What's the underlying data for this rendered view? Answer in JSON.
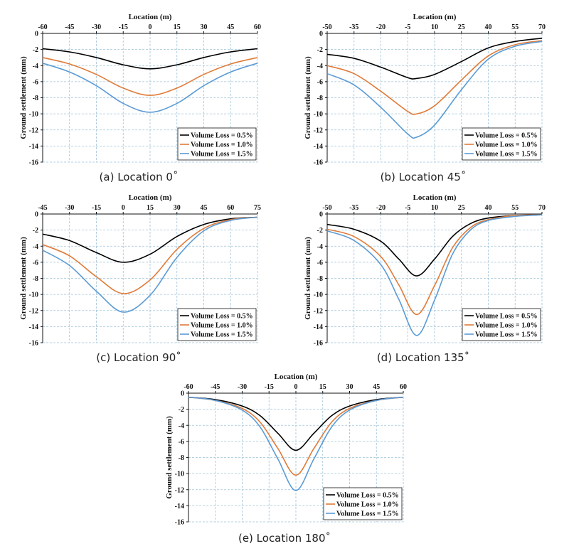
{
  "colors": {
    "vl05": "#000000",
    "vl10": "#e07b39",
    "vl15": "#5b9bd5",
    "grid": "#9fc3d9"
  },
  "chart_data": [
    {
      "type": "line",
      "caption": "(a) Location 0˚",
      "xlabel": "Location (m)",
      "ylabel": "Ground settlement (mm)",
      "xlim": [
        -60,
        60
      ],
      "ylim": [
        -16,
        0
      ],
      "xticks": [
        -60,
        -45,
        -30,
        -15,
        0,
        15,
        30,
        45,
        60
      ],
      "xtick_labels": [
        "-60",
        "-45",
        "-30",
        "-15",
        "0",
        "15",
        "30",
        "45",
        "60"
      ],
      "yticks": [
        0,
        -2,
        -4,
        -6,
        -8,
        -10,
        -12,
        -14,
        -16
      ],
      "ytick_labels": [
        "0",
        "-2",
        "-4",
        "-6",
        "-8",
        "-10",
        "-12",
        "-14",
        "-16"
      ],
      "grid": true,
      "legend_position": "bottom-right",
      "series": [
        {
          "name": "Volume Loss = 0.5%",
          "color": "#000000",
          "x": [
            -60,
            -45,
            -30,
            -15,
            0,
            15,
            30,
            45,
            60
          ],
          "y": [
            -1.9,
            -2.3,
            -3.0,
            -3.9,
            -4.4,
            -3.9,
            -3.0,
            -2.3,
            -1.9
          ]
        },
        {
          "name": "Volume Loss = 1.0%",
          "color": "#e07b39",
          "x": [
            -60,
            -45,
            -30,
            -15,
            0,
            15,
            30,
            45,
            60
          ],
          "y": [
            -3.0,
            -3.8,
            -5.1,
            -6.8,
            -7.7,
            -6.8,
            -5.1,
            -3.8,
            -3.0
          ]
        },
        {
          "name": "Volume Loss = 1.5%",
          "color": "#5b9bd5",
          "x": [
            -60,
            -45,
            -30,
            -15,
            0,
            15,
            30,
            45,
            60
          ],
          "y": [
            -3.7,
            -4.8,
            -6.5,
            -8.7,
            -9.8,
            -8.7,
            -6.5,
            -4.8,
            -3.7
          ]
        }
      ]
    },
    {
      "type": "line",
      "caption": "(b) Location 45˚",
      "xlabel": "Location (m)",
      "ylabel": "Ground settlement (mm)",
      "xlim": [
        -50,
        70
      ],
      "ylim": [
        -16,
        0
      ],
      "xticks": [
        -50,
        -35,
        -20,
        -5,
        10,
        25,
        40,
        55,
        70
      ],
      "xtick_labels": [
        "-50",
        "-35",
        "-20",
        "-5",
        "10",
        "25",
        "40",
        "55",
        "70"
      ],
      "yticks": [
        0,
        -2,
        -4,
        -6,
        -8,
        -10,
        -12,
        -14,
        -16
      ],
      "ytick_labels": [
        "0",
        "-2",
        "-4",
        "-6",
        "-8",
        "-10",
        "-12",
        "-14",
        "-16"
      ],
      "grid": true,
      "legend_position": "bottom-right",
      "series": [
        {
          "name": "Volume Loss = 0.5%",
          "color": "#000000",
          "x": [
            -50,
            -35,
            -20,
            -5,
            0,
            10,
            25,
            40,
            55,
            70
          ],
          "y": [
            -2.6,
            -3.1,
            -4.2,
            -5.5,
            -5.6,
            -5.1,
            -3.5,
            -1.8,
            -1.0,
            -0.6
          ]
        },
        {
          "name": "Volume Loss = 1.0%",
          "color": "#e07b39",
          "x": [
            -50,
            -35,
            -20,
            -5,
            0,
            10,
            25,
            40,
            55,
            70
          ],
          "y": [
            -4.0,
            -5.0,
            -7.2,
            -9.7,
            -10.0,
            -9.0,
            -5.8,
            -2.8,
            -1.4,
            -0.9
          ]
        },
        {
          "name": "Volume Loss = 1.5%",
          "color": "#5b9bd5",
          "x": [
            -50,
            -35,
            -20,
            -5,
            0,
            10,
            25,
            40,
            55,
            70
          ],
          "y": [
            -5.0,
            -6.4,
            -9.2,
            -12.5,
            -12.9,
            -11.4,
            -7.0,
            -3.2,
            -1.6,
            -1.0
          ]
        }
      ]
    },
    {
      "type": "line",
      "caption": "(c) Location 90˚",
      "xlabel": "Location (m)",
      "ylabel": "Ground settlement (mm)",
      "xlim": [
        -45,
        75
      ],
      "ylim": [
        -16,
        0
      ],
      "xticks": [
        -45,
        -30,
        -15,
        0,
        15,
        30,
        45,
        60,
        75
      ],
      "xtick_labels": [
        "-45",
        "-30",
        "-15",
        "0",
        "15",
        "30",
        "45",
        "60",
        "75"
      ],
      "yticks": [
        0,
        -2,
        -4,
        -6,
        -8,
        -10,
        -12,
        -14,
        -16
      ],
      "ytick_labels": [
        "0",
        "-2",
        "-4",
        "-6",
        "-8",
        "-10",
        "-12",
        "-14",
        "-16"
      ],
      "grid": true,
      "legend_position": "bottom-right",
      "series": [
        {
          "name": "Volume Loss = 0.5%",
          "color": "#000000",
          "x": [
            -45,
            -30,
            -15,
            0,
            15,
            30,
            45,
            60,
            75
          ],
          "y": [
            -2.5,
            -3.3,
            -4.8,
            -6.0,
            -5.0,
            -2.8,
            -1.3,
            -0.6,
            -0.4
          ]
        },
        {
          "name": "Volume Loss = 1.0%",
          "color": "#e07b39",
          "x": [
            -45,
            -30,
            -15,
            0,
            15,
            30,
            45,
            60,
            75
          ],
          "y": [
            -3.8,
            -5.2,
            -7.8,
            -9.9,
            -8.2,
            -4.4,
            -1.8,
            -0.7,
            -0.4
          ]
        },
        {
          "name": "Volume Loss = 1.5%",
          "color": "#5b9bd5",
          "x": [
            -45,
            -30,
            -15,
            0,
            15,
            30,
            45,
            60,
            75
          ],
          "y": [
            -4.5,
            -6.4,
            -9.6,
            -12.2,
            -10.1,
            -5.4,
            -2.1,
            -0.8,
            -0.4
          ]
        }
      ]
    },
    {
      "type": "line",
      "caption": "(d) Location 135˚",
      "xlabel": "Location (m)",
      "ylabel": "Ground settlement (mm)",
      "xlim": [
        -50,
        70
      ],
      "ylim": [
        -16,
        0
      ],
      "xticks": [
        -50,
        -35,
        -20,
        -5,
        10,
        25,
        40,
        55,
        70
      ],
      "xtick_labels": [
        "-50",
        "-35",
        "-20",
        "-5",
        "10",
        "25",
        "40",
        "55",
        "70"
      ],
      "yticks": [
        0,
        -2,
        -4,
        -6,
        -8,
        -10,
        -12,
        -14,
        -16
      ],
      "ytick_labels": [
        "0",
        "-2",
        "-4",
        "-6",
        "-8",
        "-10",
        "-12",
        "-14",
        "-16"
      ],
      "grid": true,
      "legend_position": "bottom-right",
      "series": [
        {
          "name": "Volume Loss = 0.5%",
          "color": "#000000",
          "x": [
            -50,
            -35,
            -20,
            -10,
            0,
            10,
            20,
            30,
            40,
            55,
            70
          ],
          "y": [
            -1.3,
            -1.9,
            -3.4,
            -5.6,
            -7.7,
            -5.6,
            -2.8,
            -1.2,
            -0.5,
            -0.2,
            -0.1
          ]
        },
        {
          "name": "Volume Loss = 1.0%",
          "color": "#e07b39",
          "x": [
            -50,
            -35,
            -20,
            -10,
            0,
            10,
            20,
            30,
            40,
            55,
            70
          ],
          "y": [
            -1.9,
            -2.8,
            -5.3,
            -8.8,
            -12.5,
            -8.9,
            -4.2,
            -1.7,
            -0.7,
            -0.2,
            -0.1
          ]
        },
        {
          "name": "Volume Loss = 1.5%",
          "color": "#5b9bd5",
          "x": [
            -50,
            -35,
            -20,
            -10,
            0,
            10,
            20,
            30,
            40,
            55,
            70
          ],
          "y": [
            -2.1,
            -3.3,
            -6.3,
            -10.6,
            -15.1,
            -10.7,
            -5.0,
            -2.0,
            -0.8,
            -0.3,
            -0.1
          ]
        }
      ]
    },
    {
      "type": "line",
      "caption": "(e) Location 180˚",
      "xlabel": "Location (m)",
      "ylabel": "Ground settlement (mm)",
      "xlim": [
        -60,
        60
      ],
      "ylim": [
        -16,
        0
      ],
      "xticks": [
        -60,
        -45,
        -30,
        -15,
        0,
        15,
        30,
        45,
        60
      ],
      "xtick_labels": [
        "-60",
        "-45",
        "-30",
        "-15",
        "0",
        "15",
        "30",
        "45",
        "60"
      ],
      "yticks": [
        0,
        -2,
        -4,
        -6,
        -8,
        -10,
        -12,
        -14,
        -16
      ],
      "ytick_labels": [
        "0",
        "-2",
        "-4",
        "-6",
        "-8",
        "-10",
        "-12",
        "-14",
        "-16"
      ],
      "grid": true,
      "legend_position": "bottom-right",
      "series": [
        {
          "name": "Volume Loss = 0.5%",
          "color": "#000000",
          "x": [
            -60,
            -45,
            -30,
            -20,
            -10,
            0,
            10,
            20,
            30,
            45,
            60
          ],
          "y": [
            -0.5,
            -0.8,
            -1.6,
            -2.8,
            -5.0,
            -7.1,
            -5.0,
            -2.8,
            -1.6,
            -0.8,
            -0.5
          ]
        },
        {
          "name": "Volume Loss = 1.0%",
          "color": "#e07b39",
          "x": [
            -60,
            -45,
            -30,
            -20,
            -10,
            0,
            10,
            20,
            30,
            45,
            60
          ],
          "y": [
            -0.5,
            -0.9,
            -1.9,
            -3.6,
            -6.9,
            -10.2,
            -6.9,
            -3.6,
            -1.9,
            -0.9,
            -0.5
          ]
        },
        {
          "name": "Volume Loss = 1.5%",
          "color": "#5b9bd5",
          "x": [
            -60,
            -45,
            -30,
            -20,
            -10,
            0,
            10,
            20,
            30,
            45,
            60
          ],
          "y": [
            -0.5,
            -0.9,
            -2.1,
            -4.2,
            -8.2,
            -12.1,
            -8.2,
            -4.2,
            -2.1,
            -0.9,
            -0.5
          ]
        }
      ]
    }
  ]
}
